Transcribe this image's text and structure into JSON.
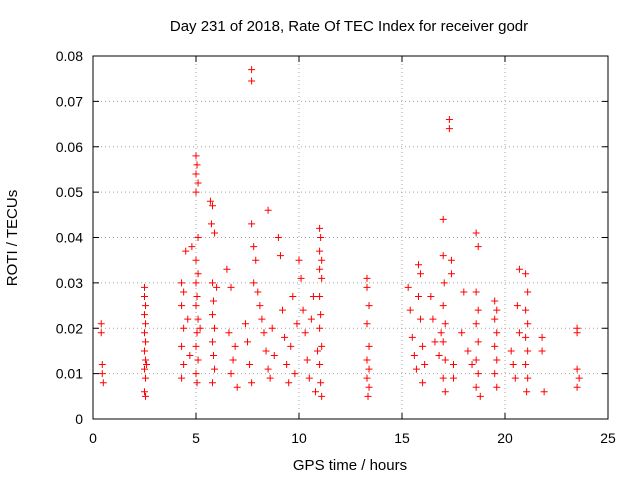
{
  "chart_data": {
    "type": "scatter",
    "title": "Day 231 of 2018, Rate Of TEC Index for receiver godr",
    "xlabel": "GPS time / hours",
    "ylabel": "ROTI / TECUs",
    "xlim": [
      0,
      25
    ],
    "ylim": [
      0,
      0.08
    ],
    "xticks": [
      0,
      5,
      10,
      15,
      20,
      25
    ],
    "xtick_labels": [
      "0",
      "5",
      "10",
      "15",
      "20",
      "25"
    ],
    "yticks": [
      0,
      0.01,
      0.02,
      0.03,
      0.04,
      0.05,
      0.06,
      0.07,
      0.08
    ],
    "ytick_labels": [
      "0",
      "0.01",
      "0.02",
      "0.03",
      "0.04",
      "0.05",
      "0.06",
      "0.07",
      "0.08"
    ],
    "grid": true,
    "marker": "+",
    "series": [
      {
        "color": "#ff0000",
        "points": [
          [
            0.4,
            0.021
          ],
          [
            0.4,
            0.019
          ],
          [
            0.45,
            0.012
          ],
          [
            0.45,
            0.01
          ],
          [
            0.5,
            0.008
          ],
          [
            2.5,
            0.029
          ],
          [
            2.5,
            0.027
          ],
          [
            2.55,
            0.025
          ],
          [
            2.5,
            0.023
          ],
          [
            2.55,
            0.021
          ],
          [
            2.5,
            0.019
          ],
          [
            2.55,
            0.017
          ],
          [
            2.5,
            0.015
          ],
          [
            2.55,
            0.013
          ],
          [
            2.5,
            0.011
          ],
          [
            2.55,
            0.009
          ],
          [
            2.5,
            0.006
          ],
          [
            2.55,
            0.005
          ],
          [
            2.6,
            0.012
          ],
          [
            4.3,
            0.03
          ],
          [
            4.4,
            0.028
          ],
          [
            4.3,
            0.025
          ],
          [
            4.4,
            0.02
          ],
          [
            4.3,
            0.016
          ],
          [
            4.4,
            0.012
          ],
          [
            4.3,
            0.009
          ],
          [
            4.5,
            0.037
          ],
          [
            4.6,
            0.022
          ],
          [
            4.7,
            0.014
          ],
          [
            4.8,
            0.038
          ],
          [
            5.0,
            0.058
          ],
          [
            5.05,
            0.056
          ],
          [
            5.0,
            0.054
          ],
          [
            5.1,
            0.052
          ],
          [
            5.0,
            0.05
          ],
          [
            5.1,
            0.04
          ],
          [
            5.0,
            0.035
          ],
          [
            5.1,
            0.032
          ],
          [
            5.0,
            0.03
          ],
          [
            5.05,
            0.027
          ],
          [
            5.0,
            0.025
          ],
          [
            5.1,
            0.022
          ],
          [
            5.05,
            0.019
          ],
          [
            5.0,
            0.016
          ],
          [
            5.1,
            0.013
          ],
          [
            5.0,
            0.01
          ],
          [
            5.05,
            0.008
          ],
          [
            5.2,
            0.02
          ],
          [
            5.7,
            0.048
          ],
          [
            5.8,
            0.047
          ],
          [
            5.75,
            0.043
          ],
          [
            5.9,
            0.041
          ],
          [
            5.8,
            0.03
          ],
          [
            5.85,
            0.026
          ],
          [
            5.8,
            0.023
          ],
          [
            5.9,
            0.02
          ],
          [
            5.8,
            0.017
          ],
          [
            5.85,
            0.014
          ],
          [
            5.9,
            0.011
          ],
          [
            5.8,
            0.008
          ],
          [
            6.0,
            0.029
          ],
          [
            6.5,
            0.033
          ],
          [
            6.7,
            0.029
          ],
          [
            6.6,
            0.019
          ],
          [
            6.8,
            0.013
          ],
          [
            6.7,
            0.01
          ],
          [
            6.9,
            0.016
          ],
          [
            7.0,
            0.007
          ],
          [
            7.4,
            0.021
          ],
          [
            7.5,
            0.017
          ],
          [
            7.6,
            0.012
          ],
          [
            7.7,
            0.008
          ],
          [
            7.7,
            0.043
          ],
          [
            7.7,
            0.077
          ],
          [
            7.7,
            0.0745
          ],
          [
            7.8,
            0.038
          ],
          [
            7.9,
            0.035
          ],
          [
            7.8,
            0.03
          ],
          [
            8.0,
            0.028
          ],
          [
            8.1,
            0.025
          ],
          [
            8.2,
            0.022
          ],
          [
            8.3,
            0.019
          ],
          [
            8.4,
            0.015
          ],
          [
            8.5,
            0.046
          ],
          [
            8.5,
            0.011
          ],
          [
            8.6,
            0.009
          ],
          [
            8.7,
            0.02
          ],
          [
            8.8,
            0.014
          ],
          [
            9.0,
            0.04
          ],
          [
            9.1,
            0.036
          ],
          [
            9.2,
            0.024
          ],
          [
            9.3,
            0.018
          ],
          [
            9.4,
            0.012
          ],
          [
            9.5,
            0.008
          ],
          [
            9.6,
            0.016
          ],
          [
            9.7,
            0.027
          ],
          [
            9.8,
            0.01
          ],
          [
            9.9,
            0.021
          ],
          [
            10.0,
            0.035
          ],
          [
            10.1,
            0.031
          ],
          [
            10.2,
            0.024
          ],
          [
            10.3,
            0.019
          ],
          [
            10.4,
            0.013
          ],
          [
            10.5,
            0.009
          ],
          [
            10.6,
            0.022
          ],
          [
            10.7,
            0.027
          ],
          [
            10.8,
            0.006
          ],
          [
            10.9,
            0.015
          ],
          [
            11.0,
            0.042
          ],
          [
            11.05,
            0.04
          ],
          [
            11.0,
            0.037
          ],
          [
            11.1,
            0.035
          ],
          [
            11.0,
            0.033
          ],
          [
            11.1,
            0.031
          ],
          [
            11.0,
            0.027
          ],
          [
            11.05,
            0.023
          ],
          [
            11.0,
            0.02
          ],
          [
            11.1,
            0.016
          ],
          [
            11.0,
            0.012
          ],
          [
            11.05,
            0.008
          ],
          [
            11.1,
            0.005
          ],
          [
            13.3,
            0.031
          ],
          [
            13.3,
            0.029
          ],
          [
            13.4,
            0.025
          ],
          [
            13.3,
            0.021
          ],
          [
            13.4,
            0.016
          ],
          [
            13.3,
            0.013
          ],
          [
            13.4,
            0.011
          ],
          [
            13.3,
            0.009
          ],
          [
            13.4,
            0.007
          ],
          [
            13.35,
            0.005
          ],
          [
            15.3,
            0.029
          ],
          [
            15.4,
            0.024
          ],
          [
            15.5,
            0.018
          ],
          [
            15.6,
            0.014
          ],
          [
            15.7,
            0.011
          ],
          [
            15.8,
            0.034
          ],
          [
            15.9,
            0.032
          ],
          [
            15.8,
            0.027
          ],
          [
            15.9,
            0.022
          ],
          [
            16.0,
            0.016
          ],
          [
            16.0,
            0.008
          ],
          [
            16.1,
            0.012
          ],
          [
            16.4,
            0.027
          ],
          [
            16.5,
            0.022
          ],
          [
            16.6,
            0.017
          ],
          [
            16.8,
            0.014
          ],
          [
            16.9,
            0.019
          ],
          [
            17.0,
            0.044
          ],
          [
            17.0,
            0.036
          ],
          [
            17.05,
            0.03
          ],
          [
            17.0,
            0.025
          ],
          [
            17.1,
            0.021
          ],
          [
            17.0,
            0.017
          ],
          [
            17.1,
            0.013
          ],
          [
            17.0,
            0.009
          ],
          [
            17.1,
            0.006
          ],
          [
            17.3,
            0.066
          ],
          [
            17.3,
            0.064
          ],
          [
            17.4,
            0.035
          ],
          [
            17.4,
            0.032
          ],
          [
            17.5,
            0.012
          ],
          [
            17.5,
            0.009
          ],
          [
            17.9,
            0.019
          ],
          [
            18.0,
            0.028
          ],
          [
            18.2,
            0.015
          ],
          [
            18.4,
            0.012
          ],
          [
            18.6,
            0.041
          ],
          [
            18.7,
            0.038
          ],
          [
            18.6,
            0.028
          ],
          [
            18.7,
            0.024
          ],
          [
            18.6,
            0.021
          ],
          [
            18.7,
            0.017
          ],
          [
            18.6,
            0.013
          ],
          [
            18.7,
            0.01
          ],
          [
            18.6,
            0.007
          ],
          [
            18.8,
            0.005
          ],
          [
            19.5,
            0.026
          ],
          [
            19.6,
            0.024
          ],
          [
            19.5,
            0.022
          ],
          [
            19.6,
            0.019
          ],
          [
            19.5,
            0.016
          ],
          [
            19.6,
            0.013
          ],
          [
            19.5,
            0.01
          ],
          [
            19.6,
            0.007
          ],
          [
            20.3,
            0.015
          ],
          [
            20.4,
            0.012
          ],
          [
            20.5,
            0.009
          ],
          [
            20.6,
            0.025
          ],
          [
            20.7,
            0.019
          ],
          [
            20.7,
            0.033
          ],
          [
            21.0,
            0.032
          ],
          [
            21.1,
            0.028
          ],
          [
            21.0,
            0.024
          ],
          [
            21.1,
            0.021
          ],
          [
            21.0,
            0.018
          ],
          [
            21.1,
            0.015
          ],
          [
            21.0,
            0.012
          ],
          [
            21.1,
            0.009
          ],
          [
            21.05,
            0.006
          ],
          [
            21.8,
            0.018
          ],
          [
            21.8,
            0.015
          ],
          [
            21.9,
            0.006
          ],
          [
            23.5,
            0.02
          ],
          [
            23.5,
            0.019
          ],
          [
            23.5,
            0.011
          ],
          [
            23.6,
            0.009
          ],
          [
            23.5,
            0.007
          ]
        ]
      }
    ]
  }
}
